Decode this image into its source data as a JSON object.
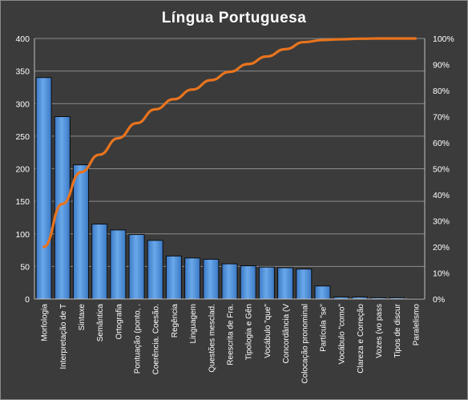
{
  "chart_data": {
    "type": "bar",
    "title": "Língua  Portuguesa",
    "categories": [
      "Morfologia",
      "Interpretação de T",
      "Sintaxe",
      "Semântica",
      "Ortografia",
      "Pontuação (ponto, .",
      "Coerência. Coesão.",
      "Regência",
      "Linguagem",
      "Questões mesclad.",
      "Reescrita de Fra.",
      "Tipologia e Gên",
      "Vocábulo \"que\"",
      "Concordância (V",
      "Colocação pronominal",
      "Partícula \"se\"",
      "Vocábulo \"como\"",
      "Clareza e Correção",
      "Vozes (vo pass",
      "Tipos de discur",
      "Paralelismo"
    ],
    "series": [
      {
        "type": "bar",
        "values": [
          340,
          280,
          206,
          115,
          106,
          99,
          90,
          66,
          63,
          61,
          54,
          51,
          49,
          48,
          46,
          20,
          3,
          3,
          2,
          2,
          1
        ],
        "color": "#4f8fd6"
      },
      {
        "type": "line",
        "axis": "right",
        "values": [
          20.0,
          36.5,
          48.7,
          55.4,
          61.7,
          67.5,
          72.8,
          76.7,
          80.4,
          84.0,
          87.2,
          90.2,
          93.1,
          95.9,
          98.6,
          99.4,
          99.7,
          99.9,
          100.0,
          100.0,
          100.0
        ],
        "color": "#e8741e"
      }
    ],
    "y_left": {
      "ylim": [
        0,
        400
      ],
      "ticks": [
        "0",
        "50",
        "100",
        "150",
        "200",
        "250",
        "300",
        "350",
        "400"
      ]
    },
    "y_right": {
      "ylim": [
        0,
        100
      ],
      "ticks": [
        "0%",
        "10%",
        "20%",
        "30%",
        "40%",
        "50%",
        "60%",
        "70%",
        "80%",
        "90%",
        "100%"
      ]
    },
    "grid": true,
    "legend": "none",
    "colors": {
      "background": "#3b3b3b",
      "bar": "#4f8fd6",
      "line": "#e8741e",
      "grid": "#8c8c8c",
      "text": "#ffffff"
    }
  }
}
